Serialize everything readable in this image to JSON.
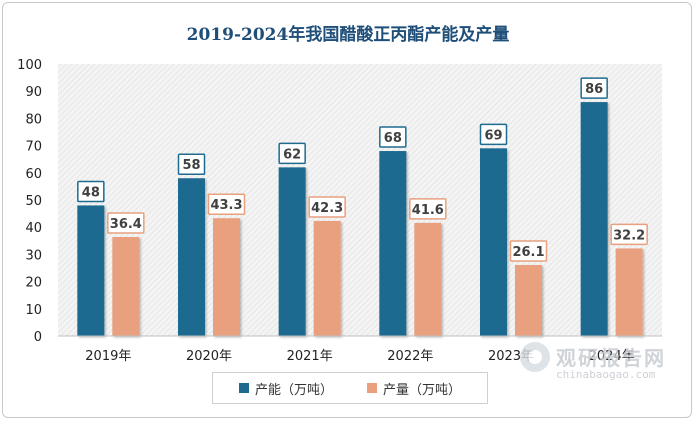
{
  "chart_data": {
    "type": "bar",
    "title": "2019-2024年我国醋酸正丙酯产能及产量",
    "categories": [
      "2019年",
      "2020年",
      "2021年",
      "2022年",
      "2023年",
      "2024年"
    ],
    "series": [
      {
        "name": "产能（万吨）",
        "values": [
          48,
          58,
          62,
          68,
          69,
          86
        ],
        "color": "#1f6b8f"
      },
      {
        "name": "产量（万吨）",
        "values": [
          36.4,
          43.3,
          42.3,
          41.6,
          26.1,
          32.2
        ],
        "color": "#e8a07f"
      }
    ],
    "ylim": [
      0,
      100
    ],
    "yticks": [
      0,
      10,
      20,
      30,
      40,
      50,
      60,
      70,
      80,
      90,
      100
    ],
    "xlabel": "",
    "ylabel": "",
    "legend": "bottom",
    "grid": false,
    "plot_background": "hatched-gray"
  },
  "watermark": {
    "name_cn": "观研报告网",
    "name_en": "chinabaogao.com"
  }
}
